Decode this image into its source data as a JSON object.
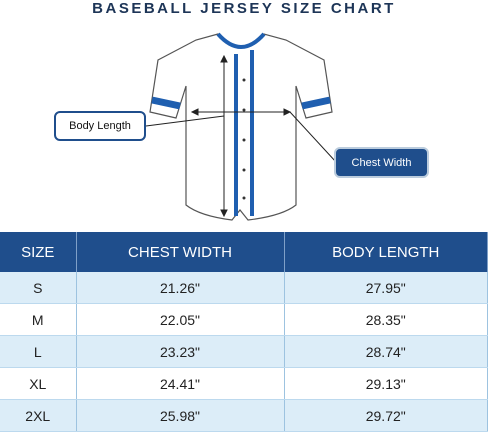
{
  "header": {
    "title": "BASEBALL JERSEY SIZE CHART"
  },
  "callouts": {
    "body_length": "Body Length",
    "chest_width": "Chest Width"
  },
  "table": {
    "columns": [
      "SIZE",
      "CHEST WIDTH",
      "BODY LENGTH"
    ],
    "rows": [
      [
        "S",
        "21.26\"",
        "27.95\""
      ],
      [
        "M",
        "22.05\"",
        "28.35\""
      ],
      [
        "L",
        "23.23\"",
        "28.74\""
      ],
      [
        "XL",
        "24.41\"",
        "29.13\""
      ],
      [
        "2XL",
        "25.98\"",
        "29.72\""
      ]
    ]
  }
}
